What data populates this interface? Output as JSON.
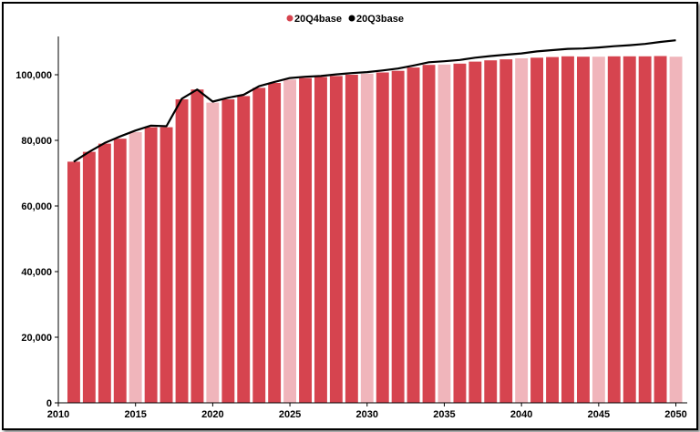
{
  "chart_data": {
    "type": "bar",
    "title": "",
    "xlabel": "",
    "ylabel": "",
    "x": [
      2011,
      2012,
      2013,
      2014,
      2015,
      2016,
      2017,
      2018,
      2019,
      2020,
      2021,
      2022,
      2023,
      2024,
      2025,
      2026,
      2027,
      2028,
      2029,
      2030,
      2031,
      2032,
      2033,
      2034,
      2035,
      2036,
      2037,
      2038,
      2039,
      2040,
      2041,
      2042,
      2043,
      2044,
      2045,
      2046,
      2047,
      2048,
      2049,
      2050
    ],
    "x_ticks": [
      "2010",
      "2015",
      "2020",
      "2025",
      "2030",
      "2035",
      "2040",
      "2045",
      "2050"
    ],
    "y_ticks": [
      "0",
      "20,000",
      "40,000",
      "60,000",
      "80,000",
      "100,000"
    ],
    "ylim": [
      0,
      110000
    ],
    "xlim": [
      2010,
      2050.5
    ],
    "series": [
      {
        "name": "20Q4base",
        "type": "bar",
        "color": "#d6444f",
        "highlight_color": "#f0b5bb",
        "highlight_years": [
          2015,
          2020,
          2025,
          2030,
          2035,
          2040,
          2045,
          2050
        ],
        "values": [
          73500,
          76500,
          79000,
          80500,
          82500,
          84000,
          84000,
          92500,
          95500,
          91500,
          92500,
          93500,
          96000,
          97500,
          98500,
          99000,
          99300,
          99600,
          100000,
          100300,
          100700,
          101200,
          102200,
          103000,
          103100,
          103400,
          104000,
          104400,
          104700,
          105000,
          105200,
          105400,
          105600,
          105500,
          105500,
          105600,
          105600,
          105600,
          105700,
          105500
        ]
      },
      {
        "name": "20Q3base",
        "type": "line",
        "color": "#000000",
        "values": [
          73500,
          76500,
          79200,
          81200,
          83000,
          84500,
          84300,
          92700,
          95500,
          91800,
          93000,
          93900,
          96500,
          97800,
          99000,
          99400,
          99600,
          100100,
          100500,
          100800,
          101300,
          101900,
          102800,
          103800,
          104100,
          104500,
          105200,
          105700,
          106100,
          106500,
          107100,
          107500,
          107900,
          108000,
          108300,
          108700,
          109000,
          109400,
          110000,
          110500
        ]
      }
    ],
    "legend": {
      "position": "top-center"
    },
    "grid": false
  }
}
